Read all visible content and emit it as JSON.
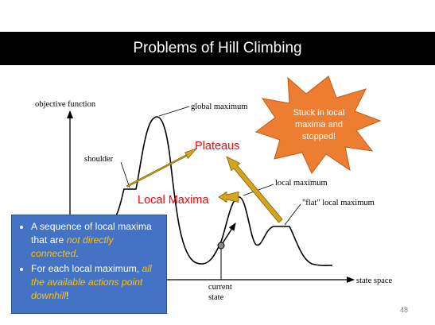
{
  "slide": {
    "title": "Problems of Hill Climbing",
    "page_number": "48"
  },
  "diagram": {
    "axis_y_label": "objective function",
    "axis_x_label": "state space",
    "labels": {
      "global_maximum": "global maximum",
      "shoulder": "shoulder",
      "local_maximum": "local maximum",
      "flat_local_maximum": "\"flat\" local maximum",
      "current": "current",
      "state": "state"
    },
    "callouts": {
      "plateaus": "Plateaus",
      "local_maxima": "Local Maxima"
    },
    "burst": {
      "line1": "Stuck in local",
      "line2": "maxima and",
      "line3": "stopped!"
    },
    "colors": {
      "arrow": "#d4a51c",
      "callout_text": "#ff0000",
      "burst_fill": "#ed7d31",
      "box_fill": "#4472c4",
      "highlight": "#ffc000"
    }
  },
  "bullets": [
    {
      "pre": "A sequence of local maxima that are ",
      "em": "not directly connected",
      "post": "."
    },
    {
      "pre": "For each local maximum, ",
      "em": "all the available actions point downhill",
      "post": "!"
    }
  ]
}
